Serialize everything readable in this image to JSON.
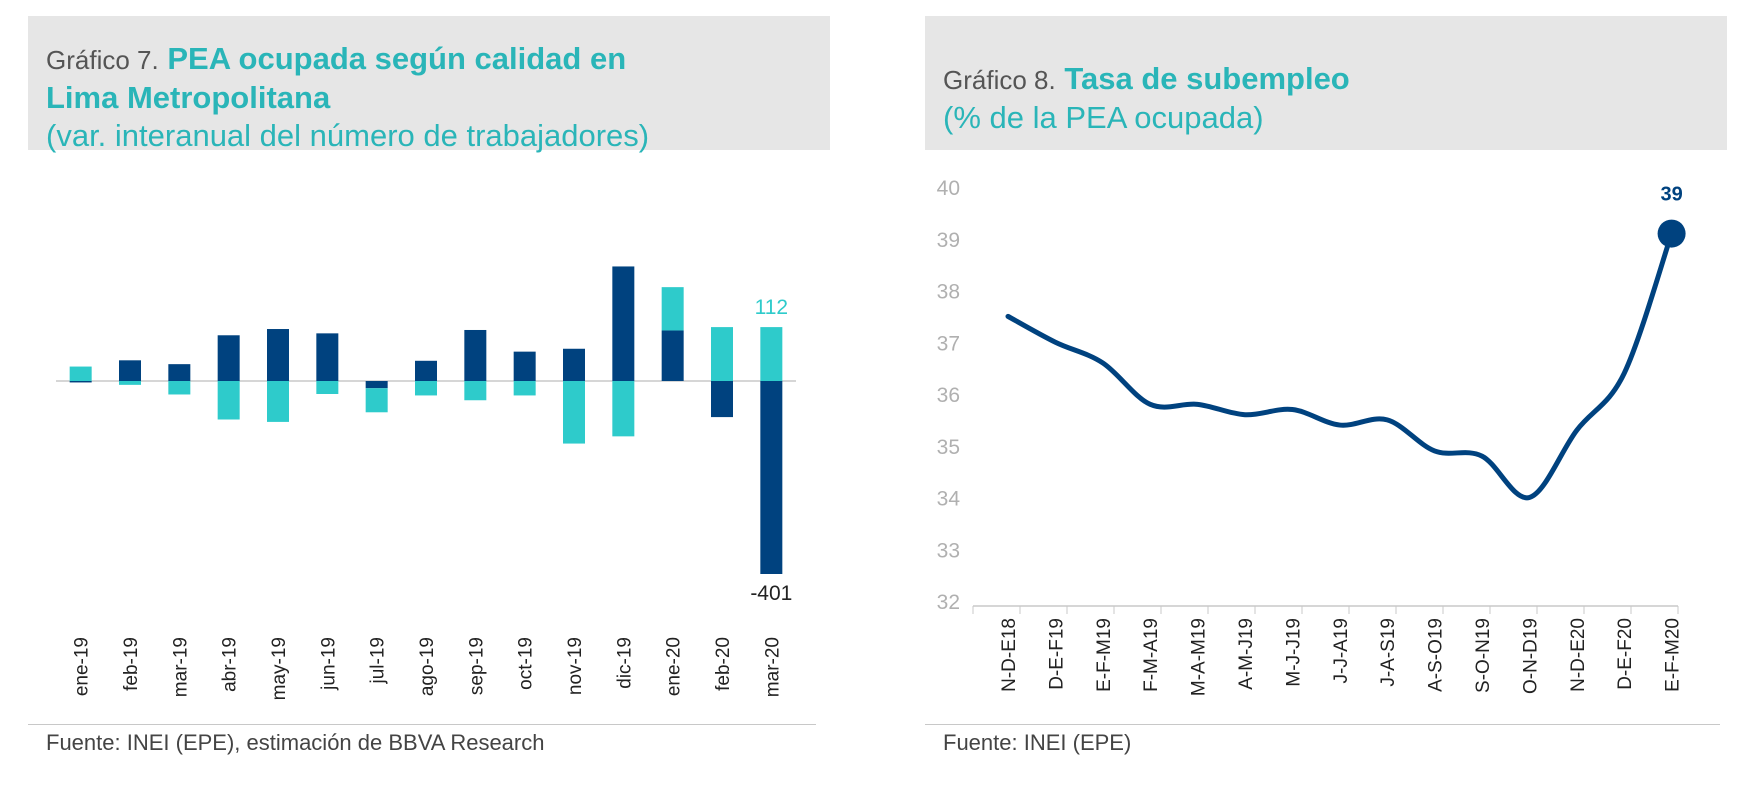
{
  "left": {
    "prefix": "Gráfico 7.",
    "title_line1": "PEA ocupada según calidad en",
    "title_line2": "Lima Metropolitana",
    "subtitle": "(var. interanual del número de trabajadores)",
    "source": "Fuente: INEI (EPE), estimación de BBVA Research"
  },
  "right": {
    "prefix": "Gráfico 8.",
    "title_line1": "Tasa de subempleo",
    "subtitle": "(% de la PEA ocupada)",
    "source": "Fuente: INEI (EPE)"
  },
  "colors": {
    "dark": "#00427f",
    "light": "#2ecbcb",
    "grey": "#c8c8c8",
    "axis_text": "#222222",
    "tick_text": "#b0b0b0"
  },
  "chart_data": [
    {
      "type": "bar",
      "stacked": true,
      "categories": [
        "ene-19",
        "feb-19",
        "mar-19",
        "abr-19",
        "may-19",
        "jun-19",
        "jul-19",
        "ago-19",
        "sep-19",
        "oct-19",
        "nov-19",
        "dic-19",
        "ene-20",
        "feb-20",
        "mar-20"
      ],
      "series": [
        {
          "color": "dark",
          "values": [
            -3,
            43,
            35,
            95,
            108,
            99,
            -15,
            42,
            106,
            61,
            67,
            238,
            105,
            -75,
            -401
          ]
        },
        {
          "color": "light",
          "values": [
            30,
            -8,
            -28,
            -80,
            -85,
            -27,
            -50,
            -30,
            -40,
            -30,
            -130,
            -115,
            90,
            112,
            112
          ]
        }
      ],
      "annotations": [
        {
          "category": "mar-20",
          "text": "112",
          "color": "light"
        },
        {
          "category": "mar-20",
          "text": "-401",
          "color": "dark"
        }
      ],
      "ylim": [
        -430,
        270
      ]
    },
    {
      "type": "line",
      "categories": [
        "N-D-E18",
        "D-E-F19",
        "E-F-M19",
        "F-M-A19",
        "M-A-M19",
        "A-M-J19",
        "M-J-J19",
        "J-J-A19",
        "J-A-S19",
        "A-S-O19",
        "S-O-N19",
        "O-N-D19",
        "N-D-E20",
        "D-E-F20",
        "E-F-M20"
      ],
      "values": [
        37.5,
        37.0,
        36.6,
        35.8,
        35.8,
        35.6,
        35.7,
        35.4,
        35.5,
        34.9,
        34.8,
        34.0,
        35.3,
        36.4,
        39.1
      ],
      "yticks": [
        "32",
        "33",
        "34",
        "35",
        "36",
        "37",
        "38",
        "39",
        "40"
      ],
      "ylim": [
        32,
        40
      ],
      "annotations": [
        {
          "category": "E-F-M20",
          "text": "39"
        }
      ]
    }
  ]
}
